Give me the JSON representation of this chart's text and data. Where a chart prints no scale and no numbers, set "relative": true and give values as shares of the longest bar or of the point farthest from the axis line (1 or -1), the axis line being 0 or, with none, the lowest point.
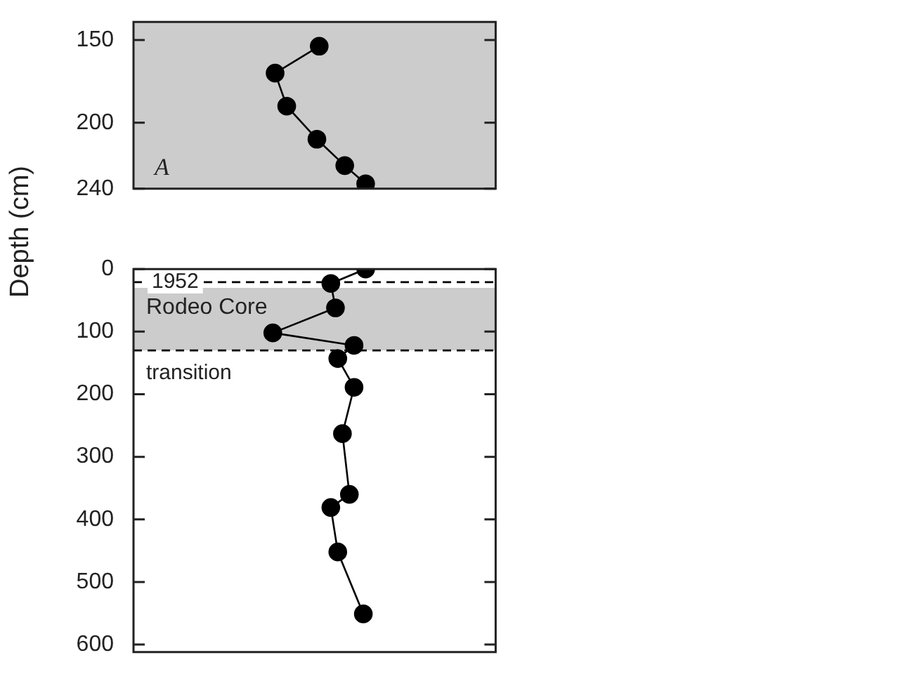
{
  "chart_data": [
    {
      "type": "line",
      "orientation": "horizontal",
      "relative": true,
      "ylabel": "Depth (cm)",
      "marker": "circle",
      "line_style": "solid",
      "x": [
        153.7,
        170,
        190,
        210,
        226,
        237
      ],
      "series": [
        {
          "color": "#000000",
          "values": [
            0.8,
            0.61,
            0.66,
            0.79,
            0.91,
            1
          ]
        }
      ],
      "ylim": [
        240,
        139
      ],
      "yticks": [
        150,
        200,
        240
      ],
      "bands": [
        {
          "axis": "y",
          "from": 139,
          "to": 240,
          "color": "#cccccc"
        }
      ],
      "annotations": [
        "A"
      ],
      "grid": false,
      "legend": false
    },
    {
      "type": "line",
      "orientation": "horizontal",
      "relative": true,
      "marker": "circle",
      "line_style": "solid",
      "x": [
        0,
        23,
        62,
        102,
        122,
        143,
        189,
        263,
        360,
        381,
        452,
        551
      ],
      "series": [
        {
          "color": "#000000",
          "values": [
            1,
            0.85,
            0.87,
            0.6,
            0.95,
            0.88,
            0.95,
            0.9,
            0.93,
            0.85,
            0.88,
            0.99
          ]
        }
      ],
      "ylim": [
        612,
        0
      ],
      "yticks": [
        0,
        100,
        200,
        300,
        400,
        500,
        600
      ],
      "bands": [
        {
          "axis": "y",
          "from": 30,
          "to": 130,
          "label": "Rodeo Core",
          "color": "#cccccc"
        }
      ],
      "annotations": [
        {
          "text": "1952",
          "y": 21
        }
      ],
      "ref_lines": [
        {
          "axis": "y",
          "value": 21,
          "line_style": "dashed"
        },
        {
          "axis": "y",
          "value": 130,
          "label": "transition",
          "line_style": "dashed"
        }
      ],
      "grid": false,
      "legend": false
    }
  ]
}
